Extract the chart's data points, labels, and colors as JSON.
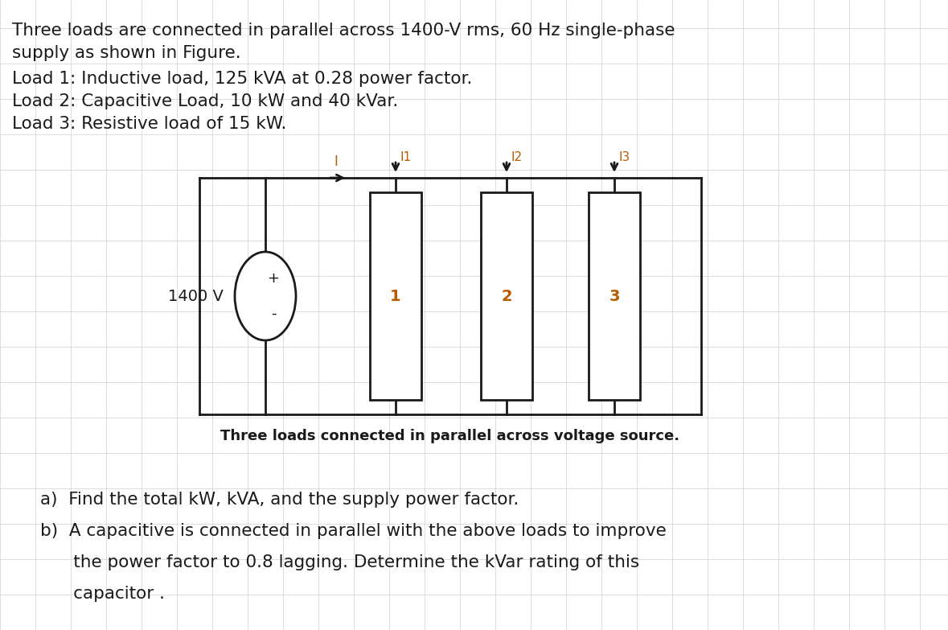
{
  "bg_color": "#ffffff",
  "text_color": "#1a1a1a",
  "orange_color": "#b85c00",
  "line1": "Three loads are connected in parallel across 1400-V rms, 60 Hz single-phase",
  "line2": "supply as shown in Figure.",
  "line3": "Load 1: Inductive load, 125 kVA at 0.28 power factor.",
  "line4": "Load 2: Capacitive Load, 10 kW and 40 kVar.",
  "line5": "Load 3: Resistive load of 15 kW.",
  "caption": "Three loads connected in parallel across voltage source.",
  "qa": "a)  Find the total kW, kVA, and the supply power factor.",
  "qb1": "b)  A capacitive is connected in parallel with the above loads to improve",
  "qb2": "      the power factor to 0.8 lagging. Determine the kVar rating of this",
  "qb3": "      capacitor .",
  "grid_color": "#d0d0d0",
  "circuit_line_color": "#1a1a1a",
  "voltage_label": "1400 V",
  "source_plus": "+",
  "source_minus": "-",
  "current_label_I": "I",
  "current_label_I1": "I1",
  "current_label_I2": "I2",
  "current_label_I3": "I3",
  "load_labels": [
    "1",
    "2",
    "3"
  ],
  "font_size_text": 15.5,
  "font_size_caption": 13,
  "font_size_circuit": 13,
  "font_size_qa": 15.5,
  "grid_step": 44
}
